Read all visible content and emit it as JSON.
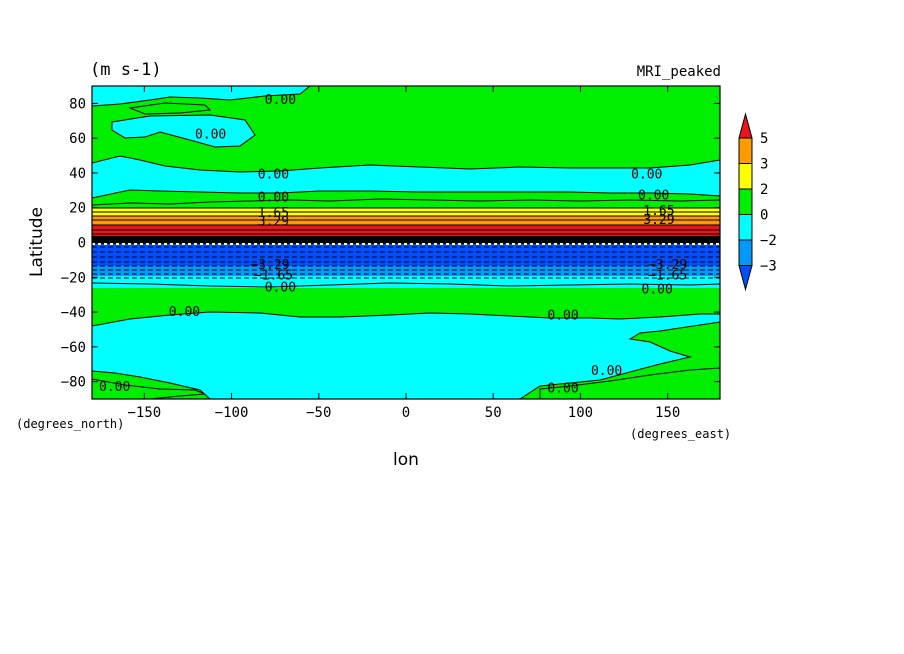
{
  "chart_data": {
    "type": "heatmap",
    "title": "(m s-1)",
    "subtitle": "MRI_peaked",
    "xlabel": "lon",
    "ylabel": "Latitude",
    "x_units": "(degrees_east)",
    "y_units": "(degrees_north)",
    "xlim": [
      -180,
      180
    ],
    "ylim": [
      -90,
      90
    ],
    "x_ticks": [
      -150,
      -100,
      -50,
      0,
      50,
      100,
      150
    ],
    "y_ticks": [
      -80,
      -60,
      -40,
      -20,
      0,
      20,
      40,
      60,
      80
    ],
    "x_tick_labels": [
      "−150",
      "−100",
      "−50",
      "0",
      "50",
      "100",
      "150"
    ],
    "y_tick_labels": [
      "−80",
      "−60",
      "−40",
      "−20",
      "0",
      "20",
      "40",
      "60",
      "80"
    ],
    "colorbar": {
      "levels": [
        5,
        3,
        2,
        0,
        -2,
        -3
      ],
      "labels": [
        "5",
        "3",
        "2",
        "0",
        "−2",
        "−3"
      ],
      "colors": [
        "#e8141e",
        "#ff9a00",
        "#ffff00",
        "#00ee00",
        "#00ffff",
        "#009aff",
        "#0050ff"
      ],
      "extend": "both"
    },
    "contour_labels": [
      {
        "text": "0.00",
        "lon": -72,
        "lat": 82
      },
      {
        "text": "0.00",
        "lon": -112,
        "lat": 62
      },
      {
        "text": "0.00",
        "lon": -76,
        "lat": 39
      },
      {
        "text": "0.00",
        "lon": 138,
        "lat": 39
      },
      {
        "text": "0.00",
        "lon": -76,
        "lat": 26
      },
      {
        "text": "0.00",
        "lon": 142,
        "lat": 27
      },
      {
        "text": "1.65",
        "lon": -76,
        "lat": 17
      },
      {
        "text": "1.65",
        "lon": 145,
        "lat": 18
      },
      {
        "text": "3.29",
        "lon": -76,
        "lat": 12
      },
      {
        "text": "3.29",
        "lon": 145,
        "lat": 13
      },
      {
        "text": "−3.29",
        "lon": -78,
        "lat": -13
      },
      {
        "text": "−3.29",
        "lon": 150,
        "lat": -13
      },
      {
        "text": "−1.65",
        "lon": -76,
        "lat": -19
      },
      {
        "text": "−1.65",
        "lon": 150,
        "lat": -19
      },
      {
        "text": "0.00",
        "lon": -72,
        "lat": -26
      },
      {
        "text": "0.00",
        "lon": 144,
        "lat": -27
      },
      {
        "text": "0.00",
        "lon": -127,
        "lat": -40
      },
      {
        "text": "0.00",
        "lon": 90,
        "lat": -42
      },
      {
        "text": "0.00",
        "lon": 115,
        "lat": -74
      },
      {
        "text": "0.00",
        "lon": -167,
        "lat": -83
      },
      {
        "text": "0.00",
        "lon": 90,
        "lat": -84
      }
    ],
    "grid": false
  }
}
